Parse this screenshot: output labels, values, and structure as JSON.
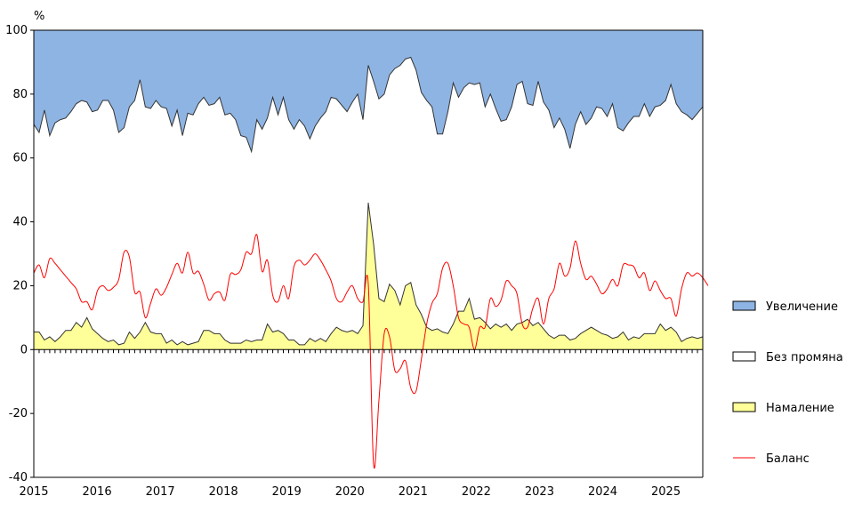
{
  "chart_data": {
    "type": "area",
    "ylabel": "%",
    "ylim": [
      -40,
      100
    ],
    "yticks": [
      -40,
      -20,
      0,
      20,
      40,
      60,
      80,
      100
    ],
    "xlim": [
      2015.0,
      2025.5833
    ],
    "xticks": [
      "2015",
      "2016",
      "2017",
      "2018",
      "2019",
      "2020",
      "2021",
      "2022",
      "2023",
      "2024",
      "2025"
    ],
    "legend_position": "right",
    "series": [
      {
        "name": "Увеличение",
        "kind": "stacked-top",
        "color": "#8EB4E3"
      },
      {
        "name": "Без промяна",
        "kind": "stacked-middle",
        "color": "#FFFFFF"
      },
      {
        "name": "Намаление",
        "kind": "stacked-bottom",
        "color": "#FFFF99"
      },
      {
        "name": "Баланс",
        "kind": "line",
        "color": "#FF0000"
      }
    ],
    "top_boundary": [
      70.5,
      68,
      75,
      67,
      71,
      72,
      72.5,
      74.5,
      77,
      78,
      77.5,
      74.5,
      75,
      78,
      78,
      75,
      68,
      69.5,
      76,
      78,
      84.5,
      76,
      75.5,
      78,
      76,
      75.5,
      70,
      75,
      67,
      74,
      73.5,
      77,
      79,
      76.5,
      77,
      79,
      73.5,
      74,
      72,
      67,
      66.5,
      62,
      72,
      69,
      72.5,
      79,
      73.5,
      79,
      72,
      69,
      72,
      70,
      66,
      70,
      72.5,
      74.5,
      79,
      78.5,
      76.5,
      74.5,
      77.5,
      80,
      72,
      89,
      84,
      78.5,
      80,
      86,
      88,
      89,
      91,
      91.5,
      87.5,
      80.5,
      78,
      76,
      67.5,
      67.5,
      74.5,
      83.5,
      79,
      82,
      83.5,
      83,
      83.5,
      76,
      80,
      75.5,
      71.5,
      72,
      76,
      83,
      84,
      77,
      76.5,
      84,
      77.5,
      75,
      69.5,
      72.5,
      69,
      63,
      70.5,
      74.5,
      70.5,
      72.5,
      76,
      75.5,
      73,
      77,
      69.5,
      68.5,
      71,
      73,
      73,
      77,
      73,
      76,
      76.5,
      78,
      83,
      77,
      74.5,
      73.5,
      72,
      74,
      76
    ],
    "bottom_boundary": [
      5.5,
      5.5,
      3,
      4,
      2.5,
      4,
      6,
      6,
      8.5,
      7,
      10,
      6.5,
      5,
      3.5,
      2.5,
      3,
      1.5,
      2,
      5.5,
      3.5,
      5.5,
      8.5,
      5.5,
      5,
      5,
      2,
      3,
      1.5,
      2.5,
      1.5,
      2,
      2.5,
      6,
      6,
      5,
      5,
      3,
      2,
      2,
      2,
      3,
      2.5,
      3,
      3,
      8,
      5.5,
      6,
      5,
      3,
      3,
      1.5,
      1.5,
      3.5,
      2.5,
      3.5,
      2.5,
      5,
      7,
      6,
      5.5,
      6,
      5,
      7.5,
      46,
      33,
      16,
      15,
      20.5,
      18.5,
      14,
      20,
      21,
      14,
      11,
      7,
      6,
      6.5,
      5.5,
      5,
      8,
      12,
      12,
      16,
      9.5,
      10,
      8.5,
      6.5,
      8,
      7,
      8,
      6,
      8,
      8.5,
      9.5,
      7.5,
      8.5,
      6.5,
      4.5,
      3.5,
      4.5,
      4.5,
      3,
      3.5,
      5,
      6,
      7,
      6,
      5,
      4.5,
      3.5,
      4,
      5.5,
      3,
      4,
      3.5,
      5,
      5,
      5,
      8,
      6,
      7,
      5.5,
      2.5,
      3.5,
      4,
      3.5,
      4
    ],
    "balance": [
      24,
      26.5,
      22.5,
      28.5,
      27,
      25,
      23,
      21,
      19,
      15,
      15,
      12.5,
      18.5,
      20,
      18.5,
      19.5,
      22,
      30.5,
      29,
      18,
      18,
      10,
      14.5,
      19,
      17,
      19.5,
      23.5,
      27,
      24,
      30.5,
      24,
      24.5,
      20.5,
      15.5,
      17.5,
      18,
      15.5,
      23.5,
      23.5,
      25,
      30.5,
      30,
      36,
      24.5,
      28,
      17,
      15,
      20,
      16,
      26,
      28,
      26.5,
      28,
      30,
      28,
      25,
      21.5,
      16,
      15,
      18,
      20,
      16,
      15,
      20.5,
      -36,
      -16,
      5,
      4,
      -6.5,
      -6,
      -3.5,
      -12,
      -13,
      -3,
      8,
      14.5,
      17.5,
      25.5,
      27,
      20,
      10,
      8,
      7,
      0,
      7,
      7,
      16,
      13.5,
      15.5,
      21.5,
      20,
      17.5,
      8,
      7,
      13,
      16,
      8,
      16,
      19,
      27,
      23,
      25.5,
      34,
      27,
      22,
      23,
      20.5,
      17.5,
      19,
      22,
      20,
      26.5,
      26.5,
      26,
      22.5,
      24,
      18.5,
      21.5,
      18.5,
      16,
      16,
      10.5,
      19,
      24,
      23,
      24,
      22.5,
      20
    ]
  }
}
